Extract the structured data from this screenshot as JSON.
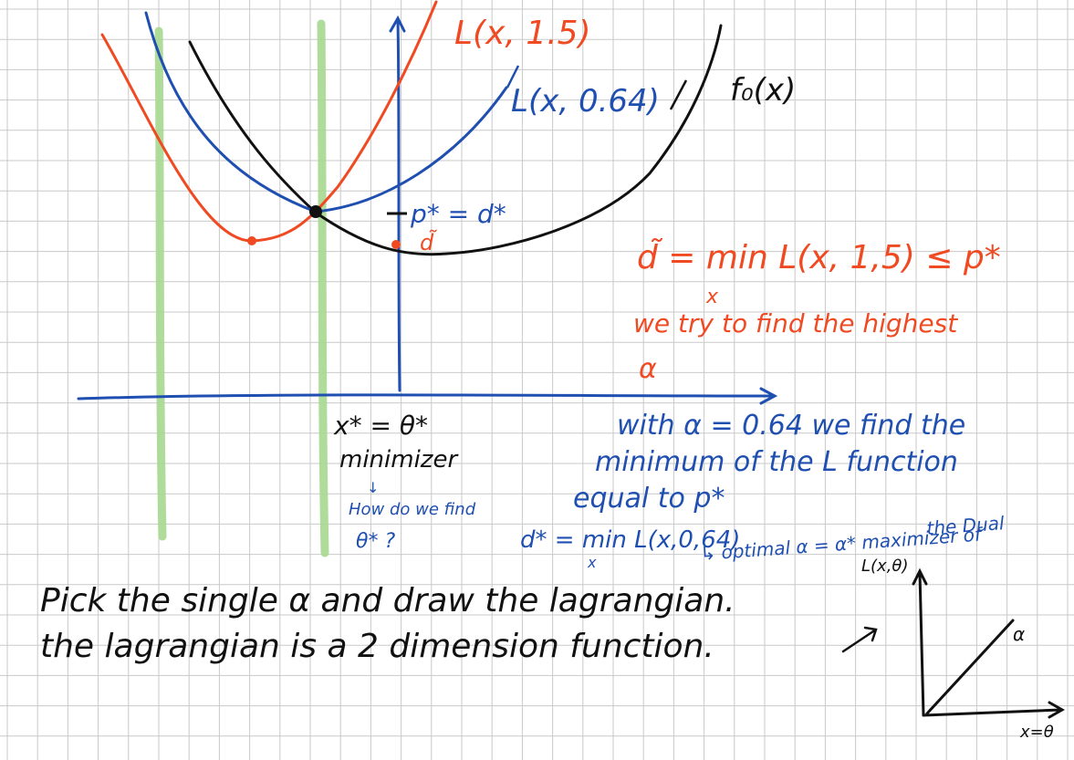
{
  "colors": {
    "grid": "#c9c9c9",
    "black": "#111111",
    "blue": "#1f4fb0",
    "red": "#f04a23",
    "green": "#a6d88f"
  },
  "curve_labels": {
    "l15": "L(x, 1.5)",
    "l064": "L(x, 0.64)",
    "f0": "f₀(x)"
  },
  "annotations": {
    "pstar": "p* = d*",
    "dtilde_mark": "d̃",
    "xstar": "x* = θ*",
    "minimizer": "minimizer",
    "how_find": "How do we find",
    "theta_q": "θ* ?"
  },
  "red_notes": {
    "line1": "d̃ = min L(x, 1,5) ≤ p*",
    "x_sub": "x",
    "line2": "we try to find the highest",
    "line3": "α"
  },
  "blue_notes": {
    "line1": "with α = 0.64 we find the",
    "line2": "minimum of the L function",
    "line3": "equal to p*",
    "line4": "d* = min L(x,0,64)",
    "x_sub": "x",
    "line5": "↳ optimal α = α* maximizer of",
    "line6": "the Dual"
  },
  "black_notes": {
    "line1": "Pick the single α and draw the lagrangian.",
    "line2": "the lagrangian is a 2 dimension function."
  },
  "mini_plot": {
    "ylabel": "L(x,θ)",
    "xlabel": "x=θ",
    "line_label": "α"
  }
}
